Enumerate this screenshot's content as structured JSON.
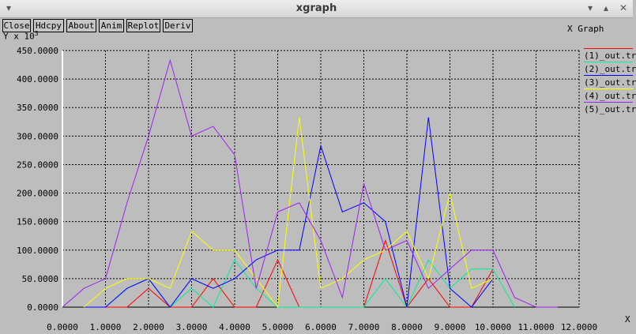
{
  "window": {
    "title": "xgraph",
    "menu_glyph": "▾",
    "controls": [
      "▾",
      "▴",
      "✕"
    ]
  },
  "toolbar": {
    "buttons": [
      {
        "label": "Close"
      },
      {
        "label": "Hdcpy"
      },
      {
        "label": "About"
      },
      {
        "label": "Anim"
      },
      {
        "label": "Replot"
      },
      {
        "label": "Deriv"
      }
    ]
  },
  "plot": {
    "title": "X Graph",
    "y_unit_label": "Y x 10",
    "y_unit_exponent": "3",
    "x_unit_label": "X"
  },
  "chart_data": {
    "type": "line",
    "title": "X Graph",
    "xlabel": "X",
    "ylabel": "Y x 10^3",
    "xlim": [
      0,
      12
    ],
    "ylim": [
      0,
      450
    ],
    "grid": true,
    "legend_placement": "right",
    "x_ticks": [
      "0.0000",
      "1.0000",
      "2.0000",
      "3.0000",
      "4.0000",
      "5.0000",
      "6.0000",
      "7.0000",
      "8.0000",
      "9.0000",
      "10.0000",
      "11.0000",
      "12.0000"
    ],
    "y_ticks": [
      "0.0000",
      "50.0000",
      "100.0000",
      "150.0000",
      "200.0000",
      "250.0000",
      "300.0000",
      "350.0000",
      "400.0000",
      "450.0000"
    ],
    "x": [
      0,
      0.5,
      1,
      1.5,
      2,
      2.5,
      3,
      3.5,
      4,
      4.5,
      5,
      5.5,
      6,
      6.5,
      7,
      7.5,
      8,
      8.5,
      9,
      9.5,
      10,
      10.5,
      11,
      11.5
    ],
    "series": [
      {
        "name": "(1)_out.tr",
        "color": "#ff0000",
        "values": [
          null,
          0,
          0,
          0,
          33,
          0,
          0,
          50,
          0,
          0,
          83,
          0,
          0,
          0,
          0,
          117,
          0,
          50,
          0,
          0,
          67,
          null,
          null,
          null
        ]
      },
      {
        "name": "(2)_out.tr",
        "color": "#00ee99",
        "values": [
          null,
          0,
          0,
          33,
          50,
          0,
          33,
          0,
          83,
          33,
          0,
          0,
          0,
          0,
          0,
          50,
          0,
          83,
          33,
          67,
          67,
          0,
          null,
          null
        ]
      },
      {
        "name": "(3)_out.tr",
        "color": "#0000ff",
        "values": [
          null,
          0,
          0,
          33,
          50,
          0,
          50,
          33,
          50,
          83,
          100,
          100,
          283,
          167,
          183,
          150,
          0,
          333,
          33,
          0,
          50,
          null,
          null,
          null
        ]
      },
      {
        "name": "(4)_out.tr",
        "color": "#ffff00",
        "values": [
          null,
          0,
          33,
          50,
          50,
          33,
          133,
          100,
          100,
          50,
          0,
          333,
          33,
          50,
          83,
          100,
          133,
          50,
          200,
          33,
          50,
          null,
          null,
          null
        ]
      },
      {
        "name": "(5)_out.tr",
        "color": "#a020f0",
        "values": [
          0,
          33,
          50,
          183,
          300,
          433,
          300,
          317,
          267,
          33,
          167,
          183,
          117,
          17,
          217,
          100,
          117,
          33,
          67,
          100,
          100,
          17,
          0,
          0
        ]
      }
    ]
  }
}
